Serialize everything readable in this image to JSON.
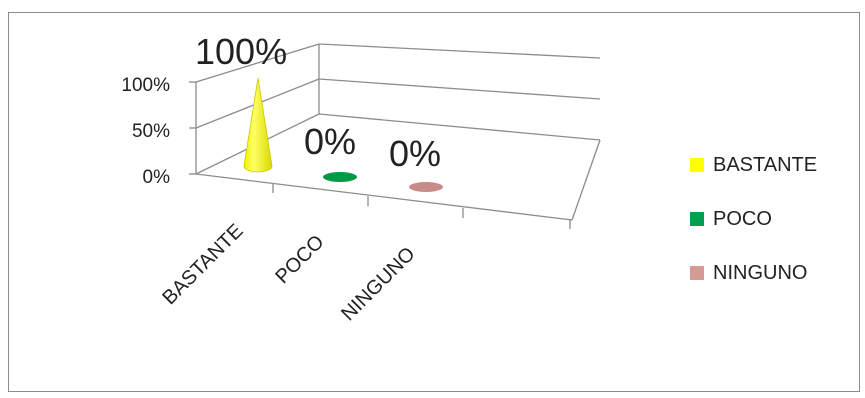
{
  "chart_data": {
    "type": "bar",
    "style": "3d-cone",
    "categories": [
      "BASTANTE",
      "POCO",
      "NINGUNO"
    ],
    "values": [
      100,
      0,
      0
    ],
    "data_labels": [
      "100%",
      "0%",
      "0%"
    ],
    "colors": [
      "#ffff00",
      "#009a44",
      "#c98a8a"
    ],
    "y_ticks": [
      "0%",
      "50%",
      "100%"
    ],
    "y_tick_values": [
      0,
      50,
      100
    ],
    "ylim": [
      0,
      100
    ],
    "title": "",
    "xlabel": "",
    "ylabel": "",
    "grid": true,
    "legend_position": "right",
    "legend": [
      {
        "label": "BASTANTE",
        "color": "#ffff00"
      },
      {
        "label": "POCO",
        "color": "#00a050"
      },
      {
        "label": "NINGUNO",
        "color": "#d59a95"
      }
    ]
  }
}
